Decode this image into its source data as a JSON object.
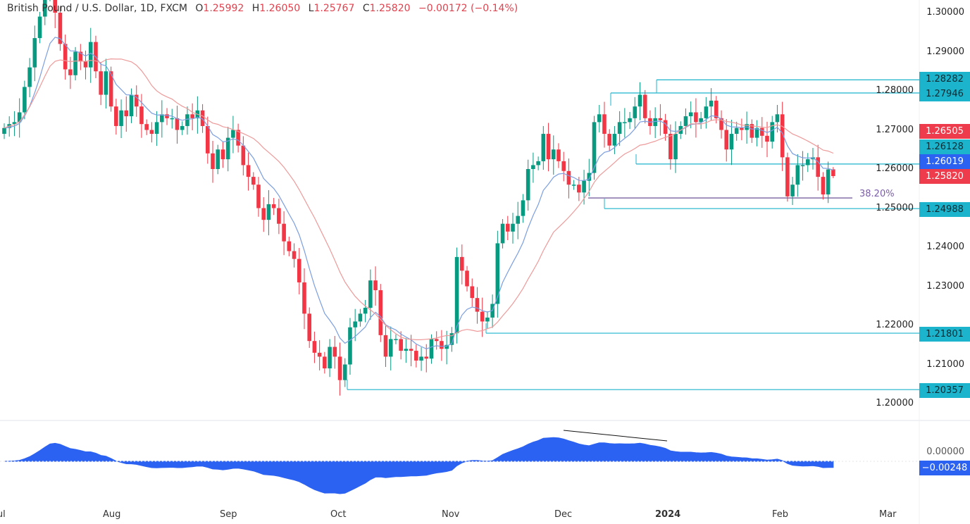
{
  "header": {
    "symbol": "British Pound / U.S. Dollar, 1D, FXCM",
    "open_key": "O",
    "open": "1.25992",
    "high_key": "H",
    "high": "1.26050",
    "low_key": "L",
    "low": "1.25767",
    "close_key": "C",
    "close": "1.25820",
    "change": "−0.00172 (−0.14%)"
  },
  "price_axis": [
    "1.30000",
    "1.29000",
    "1.28000",
    "1.27000",
    "1.26000",
    "1.25000",
    "1.24000",
    "1.23000",
    "1.22000",
    "1.21000",
    "1.20000"
  ],
  "time_axis": [
    "Jul",
    "Aug",
    "Sep",
    "Oct",
    "Nov",
    "Dec",
    "2024",
    "Feb",
    "Mar"
  ],
  "level_labels": {
    "l1": "1.28282",
    "l2": "1.27946",
    "l3": "1.26505",
    "l4": "1.26128",
    "l5": "1.26019",
    "l6": "1.25820",
    "l7": "1.24988",
    "l8": "1.21801",
    "l9": "1.20357"
  },
  "fib_label": "38.20%",
  "indicator": {
    "zero_label": "0.00000",
    "last_label": "−0.00248"
  },
  "colors": {
    "up": "#089981",
    "down": "#f23645",
    "level": "#1cb4cc",
    "fast_ma": "#7b9ee0",
    "slow_ma": "#ee9a9a",
    "oscillator": "#2c62f2",
    "fib": "#5b3f8c"
  },
  "chart_data": {
    "type": "candlestick",
    "title": "British Pound / U.S. Dollar, 1D, FXCM",
    "ylim": [
      1.195,
      1.305
    ],
    "grid": false,
    "first_open": 1.269,
    "last_candle": {
      "open": 1.25992,
      "high": 1.2605,
      "low": 1.25767,
      "close": 1.2582
    },
    "close": [
      1.2705,
      1.2715,
      1.272,
      1.2745,
      1.281,
      1.286,
      1.2935,
      1.299,
      1.306,
      1.309,
      1.3,
      1.292,
      1.2855,
      1.284,
      1.29,
      1.2875,
      1.286,
      1.2925,
      1.285,
      1.279,
      1.285,
      1.276,
      1.271,
      1.275,
      1.2735,
      1.279,
      1.276,
      1.2715,
      1.27,
      1.269,
      1.272,
      1.274,
      1.273,
      1.273,
      1.27,
      1.271,
      1.274,
      1.273,
      1.275,
      1.271,
      1.264,
      1.26,
      1.265,
      1.2625,
      1.268,
      1.27,
      1.266,
      1.261,
      1.258,
      1.256,
      1.25,
      1.247,
      1.251,
      1.25,
      1.246,
      1.2415,
      1.239,
      1.237,
      1.231,
      1.223,
      1.216,
      1.213,
      1.212,
      1.209,
      1.2145,
      1.212,
      1.206,
      1.21,
      1.2195,
      1.221,
      1.223,
      1.2245,
      1.2315,
      1.229,
      1.2175,
      1.212,
      1.2165,
      1.2165,
      1.2135,
      1.214,
      1.2135,
      1.211,
      1.212,
      1.2115,
      1.2165,
      1.216,
      1.214,
      1.215,
      1.218,
      1.2375,
      1.234,
      1.23,
      1.227,
      1.2235,
      1.221,
      1.222,
      1.2255,
      1.241,
      1.246,
      1.244,
      1.246,
      1.248,
      1.252,
      1.26,
      1.261,
      1.262,
      1.269,
      1.2625,
      1.265,
      1.262,
      1.2595,
      1.256,
      1.256,
      1.254,
      1.257,
      1.259,
      1.272,
      1.274,
      1.269,
      1.266,
      1.269,
      1.272,
      1.272,
      1.273,
      1.276,
      1.279,
      1.273,
      1.271,
      1.273,
      1.2725,
      1.269,
      1.2625,
      1.269,
      1.271,
      1.2735,
      1.2745,
      1.272,
      1.273,
      1.276,
      1.2775,
      1.273,
      1.27,
      1.265,
      1.269,
      1.2705,
      1.27,
      1.2715,
      1.268,
      1.2705,
      1.2685,
      1.267,
      1.272,
      1.274,
      1.263,
      1.253,
      1.256,
      1.261,
      1.261,
      1.2625,
      1.263,
      1.258,
      1.2535,
      1.2599,
      1.2582
    ],
    "levels": [
      1.28282,
      1.27946,
      1.26128,
      1.24988,
      1.21801,
      1.20357
    ],
    "fib_level": {
      "label": "38.20%",
      "price": 1.2526
    },
    "indicator_last": -0.00248
  }
}
